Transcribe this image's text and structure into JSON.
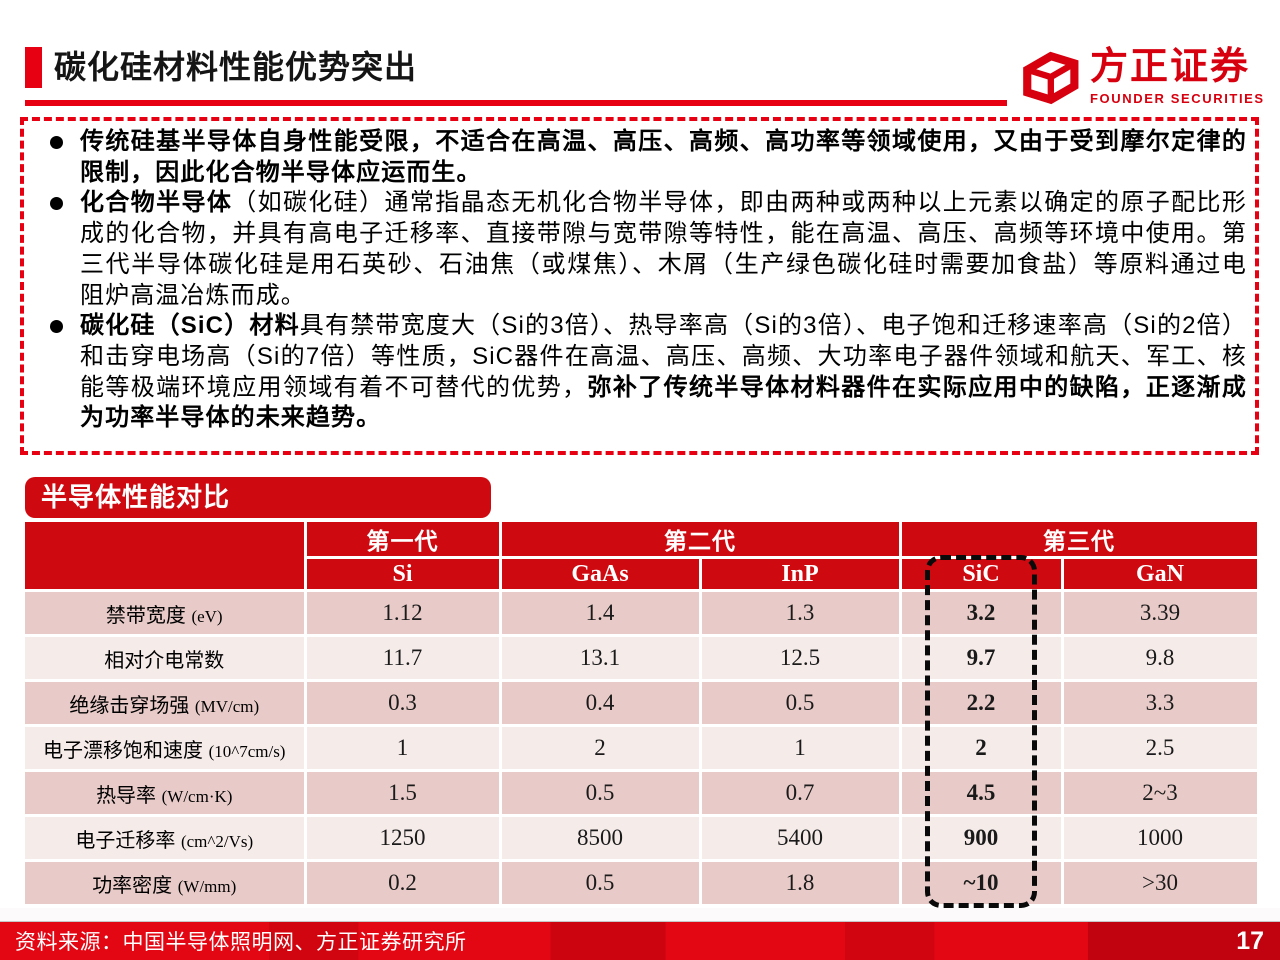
{
  "slide": {
    "title": "碳化硅材料性能优势突出",
    "logo": {
      "name_cn": "方正证券",
      "name_en": "FOUNDER SECURITIES"
    },
    "source_note": "资料来源：中国半导体照明网、方正证券研究所",
    "page_number": "17"
  },
  "bullets": [
    {
      "segments": [
        {
          "text": "传统硅基半导体自身性能受限，不适合在高温、高压、高频、高功率等领域使用，又由于受到摩尔定律的限制，因此化合物半导体应运而生。",
          "bold": true
        }
      ]
    },
    {
      "segments": [
        {
          "text": "化合物半导体",
          "bold": true
        },
        {
          "text": "（如碳化硅）通常指晶态无机化合物半导体，即由两种或两种以上元素以确定的原子配比形成的化合物，并具有高电子迁移率、直接带隙与宽带隙等特性，能在高温、高压、高频等环境中使用。第三代半导体碳化硅是用石英砂、石油焦（或煤焦）、木屑（生产绿色碳化硅时需要加食盐）等原料通过电阻炉高温冶炼而成。",
          "bold": false
        }
      ]
    },
    {
      "segments": [
        {
          "text": "碳化硅（SiC）材料",
          "bold": true
        },
        {
          "text": "具有禁带宽度大（Si的3倍）、热导率高（Si的3倍）、电子饱和迁移速率高（Si的2倍）和击穿电场高（Si的7倍）等性质，SiC器件在高温、高压、高频、大功率电子器件领域和航天、军工、核能等极端环境应用领域有着不可替代的优势，",
          "bold": false
        },
        {
          "text": "弥补了传统半导体材料器件在实际应用中的缺陷，正逐渐成为功率半导体的未来趋势。",
          "bold": true
        }
      ]
    }
  ],
  "table": {
    "badge": "半导体性能对比",
    "generations": [
      {
        "label": "第一代",
        "span": 1
      },
      {
        "label": "第二代",
        "span": 2
      },
      {
        "label": "第三代",
        "span": 2
      }
    ],
    "materials": [
      "Si",
      "GaAs",
      "InP",
      "SiC",
      "GaN"
    ],
    "highlighted_material": "SiC",
    "rows": [
      {
        "label": "禁带宽度",
        "unit": "(eV)",
        "values": [
          "1.12",
          "1.4",
          "1.3",
          "3.2",
          "3.39"
        ]
      },
      {
        "label": "相对介电常数",
        "unit": "",
        "values": [
          "11.7",
          "13.1",
          "12.5",
          "9.7",
          "9.8"
        ]
      },
      {
        "label": "绝缘击穿场强",
        "unit": "(MV/cm)",
        "values": [
          "0.3",
          "0.4",
          "0.5",
          "2.2",
          "3.3"
        ]
      },
      {
        "label": "电子漂移饱和速度",
        "unit": "(10^7cm/s)",
        "values": [
          "1",
          "2",
          "1",
          "2",
          "2.5"
        ]
      },
      {
        "label": "热导率",
        "unit": "(W/cm·K)",
        "values": [
          "1.5",
          "0.5",
          "0.7",
          "4.5",
          "2~3"
        ]
      },
      {
        "label": "电子迁移率",
        "unit": "(cm^2/Vs)",
        "values": [
          "1250",
          "8500",
          "5400",
          "900",
          "1000"
        ]
      },
      {
        "label": "功率密度",
        "unit": "(W/mm)",
        "values": [
          "0.2",
          "0.5",
          "1.8",
          "~10",
          ">30"
        ]
      }
    ]
  },
  "colors": {
    "accent_red": "#e60012",
    "table_header_red": "#ce0a10",
    "row_dark_pink": "#e8cbc8",
    "row_light_pink": "#f5ebe9",
    "footer_red": "#e30613",
    "logo_red": "#d7000f",
    "highlight_dash": "#0a0a0a"
  }
}
